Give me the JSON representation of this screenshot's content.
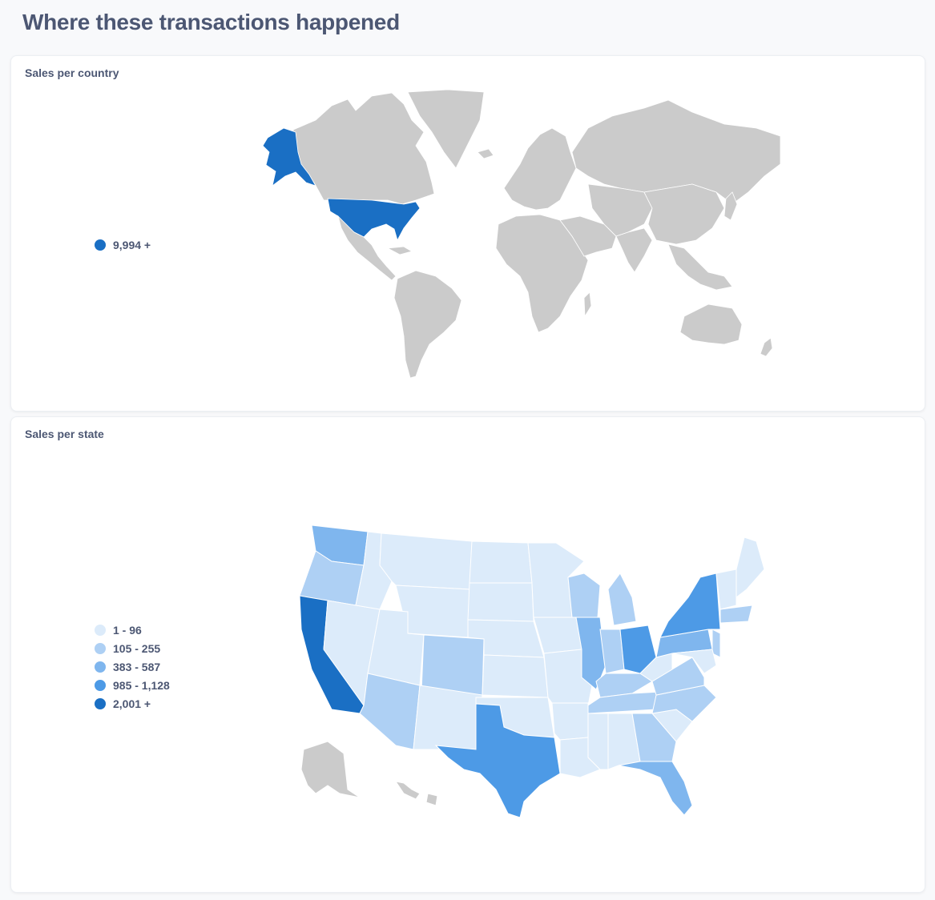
{
  "page": {
    "title": "Where these transactions happened"
  },
  "colors": {
    "scale": [
      "#dcebfa",
      "#aed0f4",
      "#7fb6ee",
      "#4d9ae6",
      "#1a6fc4"
    ],
    "no_data": "#cbcbcb",
    "border": "#ffffff"
  },
  "country_map": {
    "title": "Sales per country",
    "legend": [
      {
        "label": "9,994 +",
        "color": "#1a6fc4"
      }
    ],
    "highlighted_country": "United States"
  },
  "state_map": {
    "title": "Sales per state",
    "legend": [
      {
        "label": "1 - 96",
        "color": "#dcebfa"
      },
      {
        "label": "105 - 255",
        "color": "#aed0f4"
      },
      {
        "label": "383 - 587",
        "color": "#7fb6ee"
      },
      {
        "label": "985 - 1,128",
        "color": "#4d9ae6"
      },
      {
        "label": "2,001 +",
        "color": "#1a6fc4"
      }
    ]
  }
}
